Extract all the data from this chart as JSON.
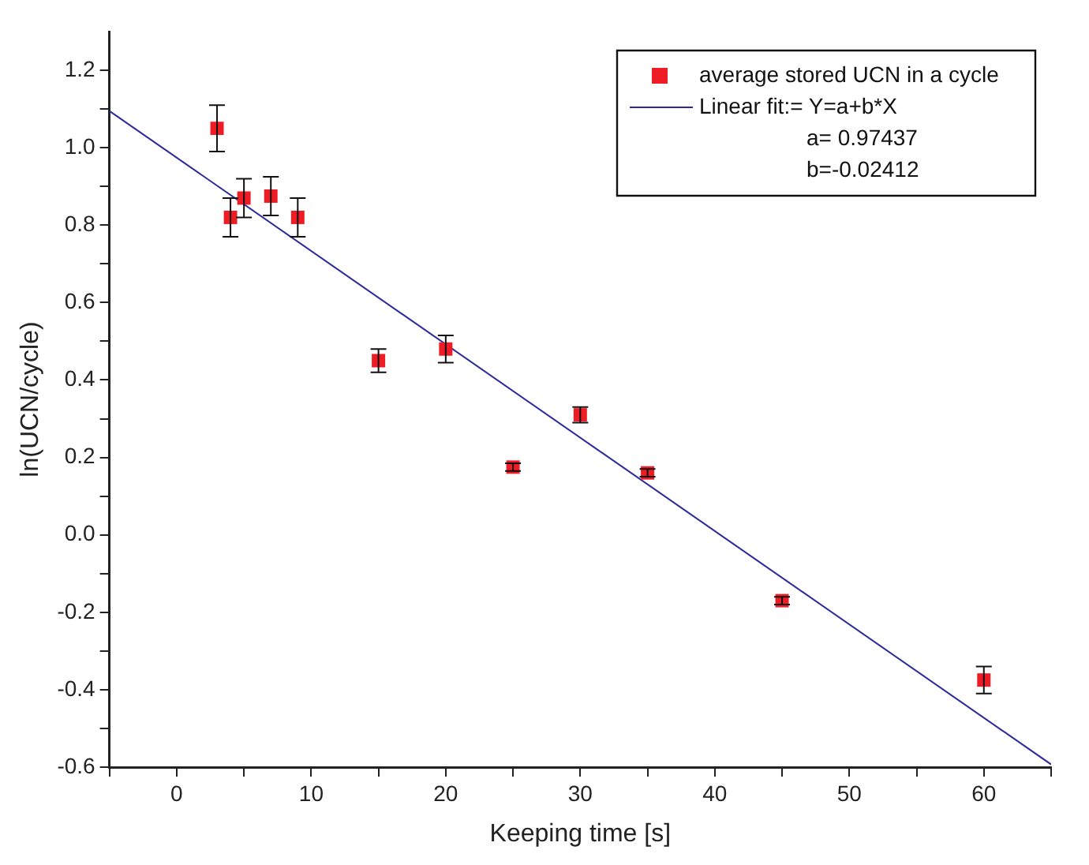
{
  "chart_data": {
    "type": "scatter",
    "xlabel": "Keeping time [s]",
    "ylabel": "ln(UCN/cycle)",
    "xlim": [
      -5,
      65
    ],
    "ylim": [
      -0.6,
      1.3
    ],
    "xticks": [
      {
        "value": -5,
        "label": null
      },
      0,
      {
        "value": 5,
        "label": null
      },
      10,
      {
        "value": 15,
        "label": null
      },
      20,
      {
        "value": 25,
        "label": null
      },
      30,
      {
        "value": 35,
        "label": null
      },
      40,
      {
        "value": 45,
        "label": null
      },
      50,
      {
        "value": 55,
        "label": null
      },
      60,
      {
        "value": 65,
        "label": null
      }
    ],
    "yticks": [
      {
        "value": -0.6,
        "label": "-0.6"
      },
      {
        "value": -0.5,
        "label": null
      },
      {
        "value": -0.4,
        "label": "-0.4"
      },
      {
        "value": -0.3,
        "label": null
      },
      {
        "value": -0.2,
        "label": "-0.2"
      },
      {
        "value": -0.1,
        "label": null
      },
      {
        "value": 0,
        "label": "0.0"
      },
      {
        "value": 0.1,
        "label": null
      },
      {
        "value": 0.2,
        "label": "0.2"
      },
      {
        "value": 0.3,
        "label": null
      },
      {
        "value": 0.4,
        "label": "0.4"
      },
      {
        "value": 0.5,
        "label": null
      },
      {
        "value": 0.6,
        "label": "0.6"
      },
      {
        "value": 0.7,
        "label": null
      },
      {
        "value": 0.8,
        "label": "0.8"
      },
      {
        "value": 0.9,
        "label": null
      },
      {
        "value": 1.0,
        "label": "1.0"
      },
      {
        "value": 1.1,
        "label": null
      },
      {
        "value": 1.2,
        "label": "1.2"
      }
    ],
    "grid": false,
    "legend": "top right",
    "marker": "square",
    "series": [
      {
        "name": "average stored UCN in a cycle",
        "color": "#ee1c25",
        "x": [
          3,
          4,
          5,
          7,
          9,
          15,
          20,
          25,
          30,
          35,
          45,
          60
        ],
        "values": [
          1.05,
          0.82,
          0.87,
          0.875,
          0.82,
          0.45,
          0.48,
          0.175,
          0.31,
          0.16,
          -0.17,
          -0.375
        ],
        "errors": [
          0.06,
          0.05,
          0.05,
          0.05,
          0.05,
          0.03,
          0.035,
          0.01,
          0.02,
          0.01,
          0.01,
          0.035
        ]
      },
      {
        "name": "Linear fit:= Y=a+b*X",
        "type": "line",
        "color": "#2b2b9a",
        "marker": "none",
        "line_style": "solid",
        "x": [
          -5,
          65
        ],
        "values": [
          1.095,
          -0.593
        ]
      }
    ],
    "annotations": [
      "a= 0.97437",
      "b=-0.02412"
    ]
  }
}
